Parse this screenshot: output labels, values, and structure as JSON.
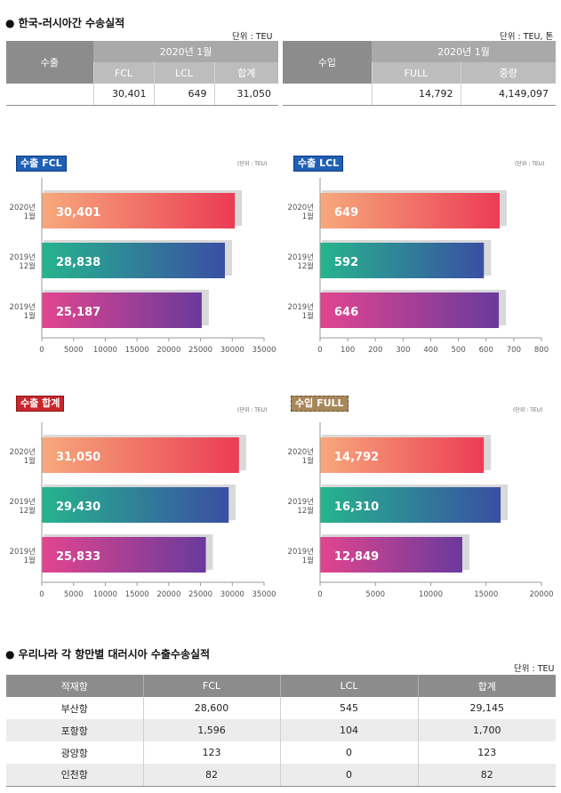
{
  "section1": {
    "title": "● 한국-러시아간 수송실적",
    "export_unit": "단위 : TEU",
    "import_unit": "단위 : TEU, 톤",
    "export_table": {
      "side_label": "수출",
      "period": "2020년 1월",
      "columns": [
        "FCL",
        "LCL",
        "합계"
      ],
      "values": [
        "30,401",
        "649",
        "31,050"
      ]
    },
    "import_table": {
      "side_label": "수입",
      "period": "2020년 1월",
      "columns": [
        "FULL",
        "중량"
      ],
      "values": [
        "14,792",
        "4,149,097"
      ]
    }
  },
  "chart_data": [
    {
      "type": "bar",
      "orientation": "horizontal",
      "title": "수출 FCL",
      "unit": "(단위 : TEU)",
      "categories": [
        [
          "2020년",
          "1월"
        ],
        [
          "2019년",
          "12월"
        ],
        [
          "2019년",
          "1월"
        ]
      ],
      "values": [
        30401,
        28838,
        25187
      ],
      "labels": [
        "30,401",
        "28,838",
        "25,187"
      ],
      "xlim": [
        0,
        35000
      ],
      "ticks": [
        0,
        5000,
        10000,
        15000,
        20000,
        25000,
        30000,
        35000
      ],
      "tick_labels": [
        "0",
        "5000",
        "10000",
        "15000",
        "20000",
        "25000",
        "30000",
        "35000"
      ]
    },
    {
      "type": "bar",
      "orientation": "horizontal",
      "title": "수출 LCL",
      "unit": "(단위 : TEU)",
      "categories": [
        [
          "2020년",
          "1월"
        ],
        [
          "2019년",
          "12월"
        ],
        [
          "2019년",
          "1월"
        ]
      ],
      "values": [
        649,
        592,
        646
      ],
      "labels": [
        "649",
        "592",
        "646"
      ],
      "xlim": [
        0,
        800
      ],
      "ticks": [
        0,
        100,
        200,
        300,
        400,
        500,
        600,
        700,
        800
      ],
      "tick_labels": [
        "0",
        "100",
        "200",
        "300",
        "400",
        "500",
        "600",
        "700",
        "800"
      ]
    },
    {
      "type": "bar",
      "orientation": "horizontal",
      "title": "수출 합계",
      "unit": "(단위 : TEU)",
      "categories": [
        [
          "2020년",
          "1월"
        ],
        [
          "2019년",
          "12월"
        ],
        [
          "2019년",
          "1월"
        ]
      ],
      "values": [
        31050,
        29430,
        25833
      ],
      "labels": [
        "31,050",
        "29,430",
        "25,833"
      ],
      "xlim": [
        0,
        35000
      ],
      "ticks": [
        0,
        5000,
        10000,
        15000,
        20000,
        25000,
        30000,
        35000
      ],
      "tick_labels": [
        "0",
        "5000",
        "10000",
        "15000",
        "20000",
        "25000",
        "30000",
        "35000"
      ]
    },
    {
      "type": "bar",
      "orientation": "horizontal",
      "title": "수입 FULL",
      "unit": "(단위 : TEU)",
      "categories": [
        [
          "2020년",
          "1월"
        ],
        [
          "2019년",
          "12월"
        ],
        [
          "2019년",
          "1월"
        ]
      ],
      "values": [
        14792,
        16310,
        12849
      ],
      "labels": [
        "14,792",
        "16,310",
        "12,849"
      ],
      "xlim": [
        0,
        20000
      ],
      "ticks": [
        0,
        5000,
        10000,
        15000,
        20000
      ],
      "tick_labels": [
        "0",
        "5000",
        "10000",
        "15000",
        "20000"
      ]
    }
  ],
  "chart_colors": {
    "gradients": [
      [
        "#f6a97b",
        "#ec3c55"
      ],
      [
        "#26b48d",
        "#3a4fa3"
      ],
      [
        "#e2458f",
        "#6a3a9c"
      ]
    ],
    "shadow": "#d9d9d9",
    "axis": "#9a9a9a",
    "bar_label": "#ffffff"
  },
  "section2": {
    "title": "● 우리나라 각 항만별 대러시아 수출수송실적",
    "unit": "단위 : TEU",
    "columns": [
      "적재항",
      "FCL",
      "LCL",
      "합계"
    ],
    "rows": [
      [
        "부산항",
        "28,600",
        "545",
        "29,145"
      ],
      [
        "포항항",
        "1,596",
        "104",
        "1,700"
      ],
      [
        "광양항",
        "123",
        "0",
        "123"
      ],
      [
        "인천항",
        "82",
        "0",
        "82"
      ]
    ]
  }
}
